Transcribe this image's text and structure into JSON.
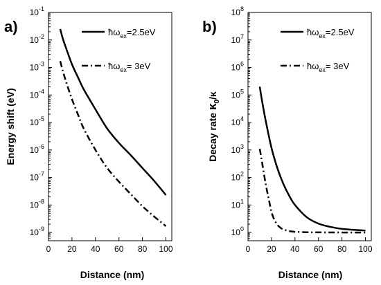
{
  "figure": {
    "background": "#ffffff",
    "line_color": "#000000"
  },
  "chart_data": [
    {
      "type": "line",
      "panel_label": "a)",
      "xlabel": "Distance (nm)",
      "ylabel": "Energy shift (eV)",
      "xlim": [
        0,
        105
      ],
      "xticks": [
        0,
        20,
        40,
        60,
        80,
        100
      ],
      "yscale": "log",
      "ylim_exp": [
        -9.3,
        -1
      ],
      "ytick_exponents": [
        -9,
        -8,
        -7,
        -6,
        -5,
        -4,
        -3,
        -2,
        -1
      ],
      "grid": false,
      "legend_placement": "top-right",
      "legend": [
        {
          "prefix": "ħω",
          "sub": "ex",
          "suffix": "=2.5eV",
          "style": "solid"
        },
        {
          "prefix": "ħω",
          "sub": "ex",
          "suffix": "= 3eV",
          "style": "dash-dot"
        }
      ],
      "series": [
        {
          "style": "solid",
          "x": [
            10,
            12,
            15,
            20,
            25,
            30,
            40,
            50,
            60,
            70,
            80,
            90,
            100
          ],
          "y": [
            0.025,
            0.012,
            0.005,
            0.0013,
            0.00045,
            0.00016,
            3e-05,
            6e-06,
            1.8e-06,
            6.5e-07,
            2.2e-07,
            7.5e-08,
            2.3e-08
          ]
        },
        {
          "style": "dash-dot",
          "x": [
            10,
            12,
            15,
            20,
            25,
            30,
            40,
            50,
            60,
            70,
            80,
            90,
            100
          ],
          "y": [
            0.0017,
            0.0008,
            0.0003,
            7e-05,
            2e-05,
            6e-06,
            1e-06,
            2.2e-07,
            7e-08,
            2.5e-08,
            9e-09,
            3.8e-09,
            1.7e-09
          ]
        }
      ]
    },
    {
      "type": "line",
      "panel_label": "b)",
      "xlabel": "Distance (nm)",
      "ylabel": "Decay rate κ0/κ",
      "ylabel_parts": {
        "main": "Decay rate ",
        "kappa": "κ",
        "sub": "0",
        "tail": "/κ"
      },
      "xlim": [
        0,
        105
      ],
      "xticks": [
        0,
        20,
        40,
        60,
        80,
        100
      ],
      "yscale": "log",
      "ylim_exp": [
        -0.3,
        8
      ],
      "ytick_exponents": [
        0,
        1,
        2,
        3,
        4,
        5,
        6,
        7,
        8
      ],
      "grid": false,
      "legend_placement": "top-right",
      "legend": [
        {
          "prefix": "ħω",
          "sub": "ex",
          "suffix": "=2.5eV",
          "style": "solid"
        },
        {
          "prefix": "ħω",
          "sub": "ex",
          "suffix": "= 3eV",
          "style": "dash-dot"
        }
      ],
      "series": [
        {
          "style": "solid",
          "x": [
            10,
            12,
            15,
            20,
            25,
            30,
            35,
            40,
            50,
            60,
            70,
            80,
            90,
            100
          ],
          "y": [
            200000,
            60000,
            12000,
            1200,
            220,
            60,
            22,
            10,
            3.6,
            2.1,
            1.6,
            1.35,
            1.25,
            1.18
          ]
        },
        {
          "style": "dash-dot",
          "x": [
            10,
            12,
            15,
            18,
            20,
            22,
            25,
            28,
            30,
            35,
            40,
            50,
            60,
            80,
            100
          ],
          "y": [
            1100,
            350,
            60,
            14,
            5.6,
            3.2,
            1.9,
            1.45,
            1.3,
            1.12,
            1.06,
            1.02,
            1.01,
            1.0,
            1.0
          ]
        }
      ]
    }
  ]
}
